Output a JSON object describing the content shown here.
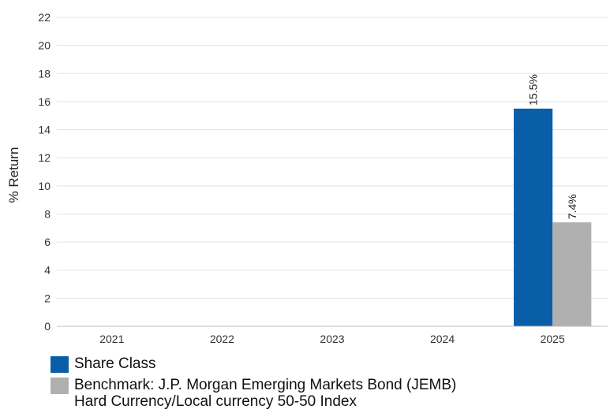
{
  "chart_data": {
    "type": "bar",
    "ylabel": "% Return",
    "ylim": [
      0,
      22
    ],
    "yticks": [
      0,
      2,
      4,
      6,
      8,
      10,
      12,
      14,
      16,
      18,
      20,
      22
    ],
    "categories": [
      "2021",
      "2022",
      "2023",
      "2024",
      "2025"
    ],
    "grid": true,
    "legend_position": "bottom-left",
    "series": [
      {
        "name": "Share Class",
        "color": "#0a5ea8",
        "values": [
          null,
          null,
          null,
          null,
          15.5
        ],
        "labels": [
          "",
          "",
          "",
          "",
          "15.5%"
        ]
      },
      {
        "name": "Benchmark: J.P. Morgan Emerging Markets Bond (JEMB) Hard Currency/Local currency 50-50 Index",
        "color": "#b0b0b0",
        "values": [
          null,
          null,
          null,
          null,
          7.4
        ],
        "labels": [
          "",
          "",
          "",
          "",
          "7.4%"
        ]
      }
    ]
  },
  "legend": {
    "items": [
      {
        "line1": "Share Class",
        "line2": ""
      },
      {
        "line1": "Benchmark: J.P. Morgan Emerging Markets Bond (JEMB)",
        "line2": "Hard Currency/Local currency 50-50 Index"
      }
    ]
  }
}
